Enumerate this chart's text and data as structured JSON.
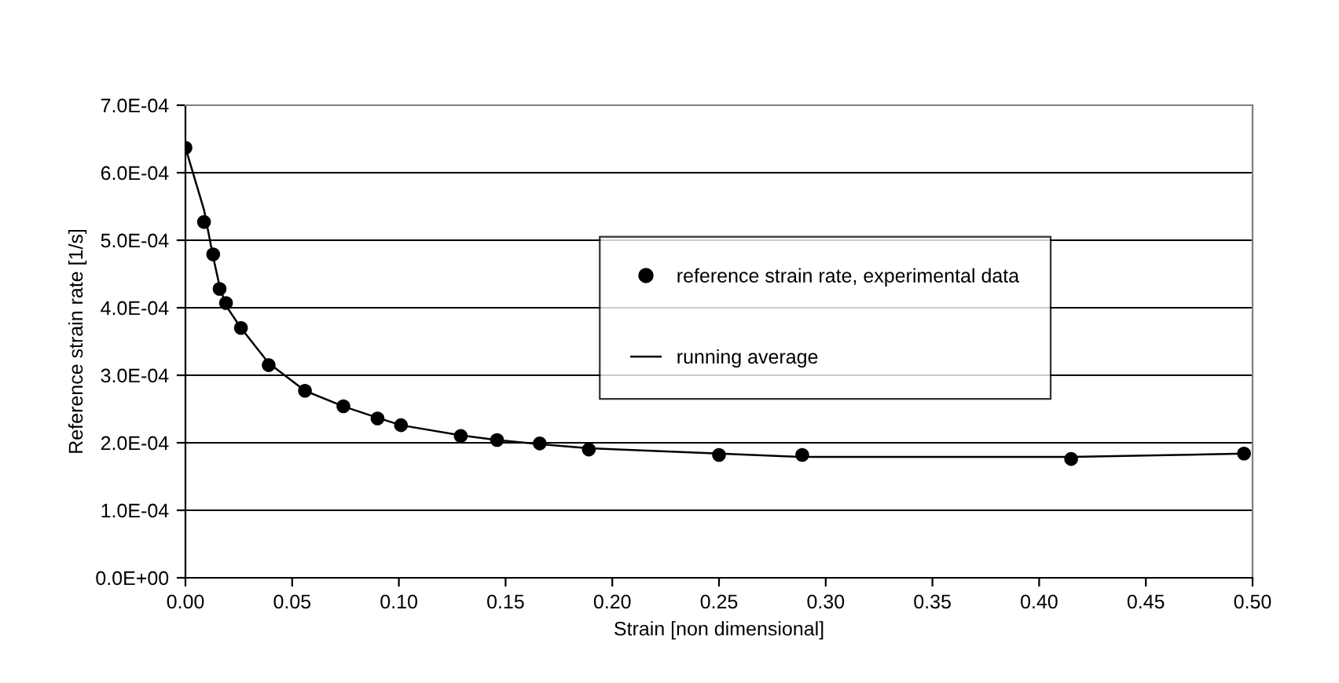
{
  "chart_data": {
    "type": "scatter",
    "xlabel": "Strain [non dimensional]",
    "ylabel": "Reference strain rate [1/s]",
    "xlim": [
      0,
      0.5
    ],
    "xticks": [
      {
        "value": 0,
        "label": "0.00"
      },
      {
        "value": 0.05,
        "label": "0.05"
      },
      {
        "value": 0.1,
        "label": "0.10"
      },
      {
        "value": 0.15,
        "label": "0.15"
      },
      {
        "value": 0.2,
        "label": "0.20"
      },
      {
        "value": 0.25,
        "label": "0.25"
      },
      {
        "value": 0.3,
        "label": "0.30"
      },
      {
        "value": 0.35,
        "label": "0.35"
      },
      {
        "value": 0.4,
        "label": "0.40"
      },
      {
        "value": 0.45,
        "label": "0.45"
      },
      {
        "value": 0.5,
        "label": "0.50"
      }
    ],
    "ylim": [
      0,
      0.0007
    ],
    "yticks": [
      {
        "value": 0,
        "label": "0.0E+00"
      },
      {
        "value": 0.0001,
        "label": "1.0E-04"
      },
      {
        "value": 0.0002,
        "label": "2.0E-04"
      },
      {
        "value": 0.0003,
        "label": "3.0E-04"
      },
      {
        "value": 0.0004,
        "label": "4.0E-04"
      },
      {
        "value": 0.0005,
        "label": "5.0E-04"
      },
      {
        "value": 0.0006,
        "label": "6.0E-04"
      },
      {
        "value": 0.0007,
        "label": "7.0E-04"
      }
    ],
    "grid": "y",
    "legend": "center right",
    "series": [
      {
        "name": "reference strain rate, experimental data",
        "marker": "circle",
        "color": "#000000",
        "x": [
          0,
          0.0087,
          0.013,
          0.016,
          0.019,
          0.026,
          0.039,
          0.056,
          0.074,
          0.09,
          0.101,
          0.129,
          0.146,
          0.166,
          0.189,
          0.25,
          0.289,
          0.415,
          0.496
        ],
        "values": [
          0.000637,
          0.000527,
          0.000479,
          0.000428,
          0.000407,
          0.00037,
          0.000315,
          0.000277,
          0.000254,
          0.000236,
          0.000226,
          0.00021,
          0.000204,
          0.000199,
          0.00019,
          0.000182,
          0.000182,
          0.000176,
          0.000184
        ]
      },
      {
        "name": "running average",
        "type": "line",
        "marker": "none",
        "line_style": "solid",
        "color": "#000000",
        "x": [
          0,
          0.0087,
          0.013,
          0.016,
          0.019,
          0.026,
          0.039,
          0.056,
          0.074,
          0.09,
          0.101,
          0.129,
          0.146,
          0.166,
          0.189,
          0.25,
          0.289,
          0.415,
          0.496
        ],
        "values": [
          0.000637,
          0.000545,
          0.000475,
          0.000432,
          0.000403,
          0.00037,
          0.000318,
          0.000277,
          0.000254,
          0.000237,
          0.000226,
          0.000211,
          0.000204,
          0.000198,
          0.000192,
          0.000184,
          0.000179,
          0.000179,
          0.000184
        ]
      }
    ]
  }
}
